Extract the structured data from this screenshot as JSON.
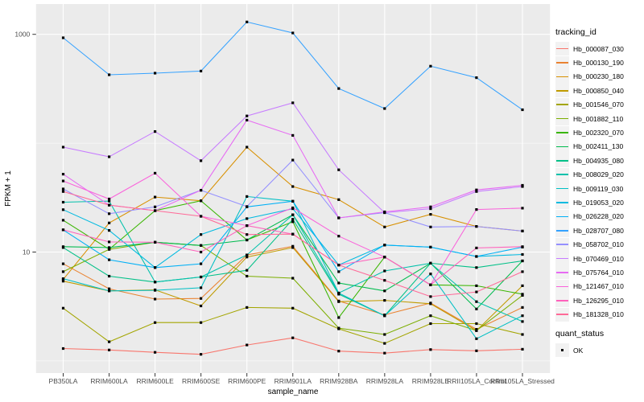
{
  "style": {
    "figure_background": "#FFFFFF",
    "panel_background": "#EBEBEB",
    "gridline_color": "#FFFFFF",
    "axis_text_color": "#4D4D4D",
    "axis_title_color": "#000000",
    "point_color": "#000000",
    "legend_key_background": "#F2F2F2"
  },
  "axes": {
    "x_title": "sample_name",
    "y_title": "FPKM + 1",
    "y_tick_labels": [
      "1000",
      "10"
    ]
  },
  "legend": {
    "tracking_title": "tracking_id",
    "quant_title": "quant_status",
    "quant_items": [
      {
        "label": "OK",
        "marker": "black-square"
      }
    ]
  },
  "chart_data": {
    "type": "line",
    "title": "",
    "xlabel": "sample_name",
    "ylabel": "FPKM + 1",
    "y_scale": "log10",
    "y_ticks": [
      1000,
      10
    ],
    "y_minor_ticks": [
      100,
      1
    ],
    "ylim": [
      1.15,
      1300
    ],
    "grid": true,
    "legend_position": "right",
    "point_marker": "small black square (quant_status = OK at every point)",
    "categories": [
      "PB350LA",
      "RRIM600LA",
      "RRIM600LE",
      "RRIM600SE",
      "RRIM600PE",
      "RRIM901LA",
      "RRIM928BA",
      "RRIM928LA",
      "RRIM928LE",
      "RRII105LA_Control",
      "RRII105LA_Stressed"
    ],
    "series": [
      {
        "name": "Hb_000087_030",
        "color": "#F8766D",
        "values": [
          1.3,
          1.26,
          1.2,
          1.15,
          1.4,
          1.63,
          1.23,
          1.18,
          1.27,
          1.24,
          1.28
        ]
      },
      {
        "name": "Hb_000130_190",
        "color": "#EA8331",
        "values": [
          7.8,
          4.6,
          3.7,
          3.75,
          9.4,
          11.3,
          3.55,
          2.65,
          3.4,
          1.95,
          3.1
        ]
      },
      {
        "name": "Hb_000230_180",
        "color": "#D89000",
        "values": [
          5.6,
          18.5,
          32,
          29.6,
          92,
          40,
          30.3,
          17,
          22.2,
          17.2,
          15.6
        ]
      },
      {
        "name": "Hb_000850_040",
        "color": "#C09B00",
        "values": [
          5.4,
          4.4,
          4.5,
          3.2,
          9.0,
          11.0,
          3.5,
          3.6,
          3.35,
          1.9,
          4.9
        ]
      },
      {
        "name": "Hb_001546_070",
        "color": "#A3A500",
        "values": [
          3.05,
          1.5,
          2.25,
          2.25,
          3.1,
          3.05,
          1.97,
          1.45,
          2.2,
          2.2,
          1.75
        ]
      },
      {
        "name": "Hb_001882_110",
        "color": "#7CAE00",
        "values": [
          6.6,
          10.6,
          12.3,
          11.5,
          6.0,
          5.75,
          2.0,
          1.75,
          2.6,
          1.9,
          4.0
        ]
      },
      {
        "name": "Hb_002320_070",
        "color": "#39B600",
        "values": [
          19.6,
          10.6,
          24,
          29.6,
          12.9,
          19,
          2.5,
          9.0,
          5.0,
          4.9,
          4.1
        ]
      },
      {
        "name": "Hb_002411_130",
        "color": "#00BB4E",
        "values": [
          11.2,
          11.0,
          12.3,
          11.5,
          12.9,
          22,
          5.2,
          4.4,
          7.9,
          3.0,
          8.3
        ]
      },
      {
        "name": "Hb_004935_080",
        "color": "#00C087",
        "values": [
          11.0,
          6.0,
          5.3,
          5.9,
          6.8,
          20,
          4.1,
          2.6,
          7.9,
          7.2,
          8.3
        ]
      },
      {
        "name": "Hb_008029_020",
        "color": "#00C1AB",
        "values": [
          28.7,
          29.4,
          5.3,
          5.9,
          9.4,
          22,
          4.2,
          6.7,
          7.9,
          3.5,
          2.3
        ]
      },
      {
        "name": "Hb_009119_030",
        "color": "#00BFC4",
        "values": [
          5.7,
          4.4,
          4.45,
          4.7,
          32.4,
          29.3,
          4.2,
          2.6,
          6.3,
          1.6,
          2.6
        ]
      },
      {
        "name": "Hb_019053_020",
        "color": "#00BAE0",
        "values": [
          24.5,
          15.8,
          7.2,
          14.5,
          20.3,
          25,
          7.6,
          11.6,
          11.1,
          9.1,
          9.5
        ]
      },
      {
        "name": "Hb_026228_020",
        "color": "#00B0F6",
        "values": [
          16,
          8.5,
          7.2,
          7.8,
          26,
          29.3,
          6.6,
          11.6,
          11.1,
          9.1,
          11.1
        ]
      },
      {
        "name": "Hb_028707_080",
        "color": "#35A2FF",
        "values": [
          930,
          425,
          440,
          460,
          1300,
          1030,
          318,
          208,
          510,
          400,
          203
        ]
      },
      {
        "name": "Hb_058702_010",
        "color": "#9590FF",
        "values": [
          38,
          22.5,
          26,
          37,
          26.2,
          70,
          20.6,
          23,
          17,
          17.2,
          15.6
        ]
      },
      {
        "name": "Hb_070469_010",
        "color": "#C77CFF",
        "values": [
          92,
          75,
          128,
          69,
          178,
          235,
          57,
          23,
          25,
          36,
          40
        ]
      },
      {
        "name": "Hb_075764_010",
        "color": "#E76BF3",
        "values": [
          52,
          27,
          24,
          37,
          163,
          118,
          20.6,
          23.4,
          26,
          37.2,
          41
        ]
      },
      {
        "name": "Hb_121467_010",
        "color": "#FA62DB",
        "values": [
          45,
          30.7,
          53,
          21.3,
          17.5,
          25.5,
          14,
          9.0,
          5.0,
          24.6,
          25.3
        ]
      },
      {
        "name": "Hb_126295_010",
        "color": "#FF62BC",
        "values": [
          16,
          12.4,
          12.3,
          10,
          17.5,
          14.6,
          7.6,
          9.0,
          5.0,
          10.9,
          11.2
        ]
      },
      {
        "name": "Hb_181328_010",
        "color": "#FF6A98",
        "values": [
          36,
          27,
          24,
          21.3,
          14.5,
          14.6,
          7.6,
          5.5,
          3.9,
          4.3,
          6.6
        ]
      }
    ]
  }
}
